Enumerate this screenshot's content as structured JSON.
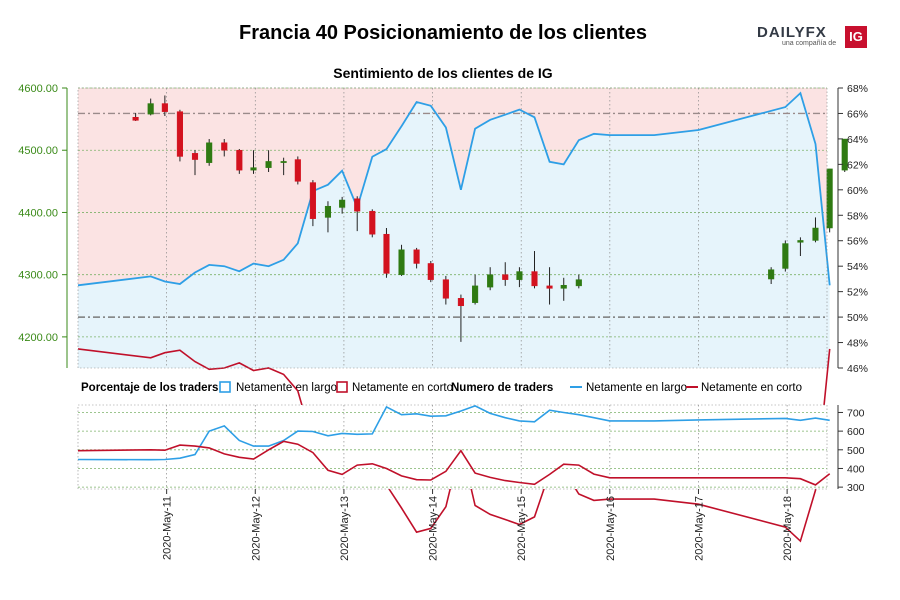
{
  "header": {
    "title": "Francia 40 Posicionamiento de los clientes",
    "brand": "DAILYFX",
    "brand_sub": "una compañía de",
    "brand_badge": "IG"
  },
  "colors": {
    "long": "#2e9fe6",
    "short": "#c0102a",
    "candle_up": "#2f7a12",
    "candle_down": "#d3121f",
    "price_axis": "#3a8a18",
    "long_fill": "#e6f4fb",
    "short_fill": "#fbe3e3"
  },
  "legend": {
    "pct_title": "Porcentaje de los traders",
    "pct_long": "Netamente en largo",
    "pct_short": "Netamente en corto",
    "num_title": "Numero de traders",
    "num_long": "Netamente en largo",
    "num_short": "Netamente en corto"
  },
  "chart_data": [
    {
      "type": "candlestick+line",
      "title": "Sentimiento de los clientes de IG",
      "x_axis": {
        "range_days": [
          0,
          8.45
        ],
        "tick_labels": [
          "2020-May-11",
          "2020-May-12",
          "2020-May-13",
          "2020-May-14",
          "2020-May-15",
          "2020-May-16",
          "2020-May-17",
          "2020-May-18"
        ],
        "tick_pos": [
          1,
          2,
          3,
          4,
          5,
          6,
          7,
          8
        ]
      },
      "price_axis": {
        "side": "left",
        "range": [
          4150,
          4600
        ],
        "ticks": [
          4200,
          4300,
          4400,
          4500,
          4600
        ],
        "tick_labels": [
          "4200.00",
          "4300.00",
          "4400.00",
          "4500.00",
          "4600.00"
        ]
      },
      "pct_axis": {
        "side": "right",
        "range": [
          46,
          68
        ],
        "ticks": [
          46,
          48,
          50,
          52,
          54,
          56,
          58,
          60,
          62,
          64,
          66,
          68
        ],
        "tick_labels": [
          "46%",
          "48%",
          "50%",
          "52%",
          "54%",
          "56%",
          "58%",
          "60%",
          "62%",
          "64%",
          "66%",
          "68%"
        ]
      },
      "reference_lines": {
        "upper_pct": 66,
        "lower_pct": 50
      },
      "grid": true,
      "candles": [
        {
          "t": 0.65,
          "o": 4553,
          "h": 4560,
          "l": 4547,
          "c": 4548
        },
        {
          "t": 0.82,
          "o": 4558,
          "h": 4583,
          "l": 4556,
          "c": 4575
        },
        {
          "t": 0.98,
          "o": 4575,
          "h": 4588,
          "l": 4555,
          "c": 4562
        },
        {
          "t": 1.15,
          "o": 4562,
          "h": 4565,
          "l": 4482,
          "c": 4490
        },
        {
          "t": 1.32,
          "o": 4495,
          "h": 4500,
          "l": 4460,
          "c": 4485
        },
        {
          "t": 1.48,
          "o": 4480,
          "h": 4518,
          "l": 4475,
          "c": 4512
        },
        {
          "t": 1.65,
          "o": 4512,
          "h": 4518,
          "l": 4490,
          "c": 4500
        },
        {
          "t": 1.82,
          "o": 4500,
          "h": 4502,
          "l": 4462,
          "c": 4468
        },
        {
          "t": 1.98,
          "o": 4468,
          "h": 4500,
          "l": 4462,
          "c": 4472
        },
        {
          "t": 2.15,
          "o": 4472,
          "h": 4500,
          "l": 4465,
          "c": 4482
        },
        {
          "t": 2.32,
          "o": 4482,
          "h": 4488,
          "l": 4460,
          "c": 4482
        },
        {
          "t": 2.48,
          "o": 4485,
          "h": 4490,
          "l": 4445,
          "c": 4450
        },
        {
          "t": 2.65,
          "o": 4448,
          "h": 4452,
          "l": 4378,
          "c": 4390
        },
        {
          "t": 2.82,
          "o": 4392,
          "h": 4418,
          "l": 4368,
          "c": 4410
        },
        {
          "t": 2.98,
          "o": 4408,
          "h": 4425,
          "l": 4398,
          "c": 4420
        },
        {
          "t": 3.15,
          "o": 4422,
          "h": 4426,
          "l": 4370,
          "c": 4402
        },
        {
          "t": 3.32,
          "o": 4402,
          "h": 4405,
          "l": 4360,
          "c": 4365
        },
        {
          "t": 3.48,
          "o": 4365,
          "h": 4375,
          "l": 4295,
          "c": 4302
        },
        {
          "t": 3.65,
          "o": 4300,
          "h": 4348,
          "l": 4298,
          "c": 4340
        },
        {
          "t": 3.82,
          "o": 4340,
          "h": 4343,
          "l": 4310,
          "c": 4318
        },
        {
          "t": 3.98,
          "o": 4318,
          "h": 4322,
          "l": 4288,
          "c": 4292
        },
        {
          "t": 4.15,
          "o": 4292,
          "h": 4298,
          "l": 4252,
          "c": 4262
        },
        {
          "t": 4.32,
          "o": 4262,
          "h": 4268,
          "l": 4192,
          "c": 4250
        },
        {
          "t": 4.48,
          "o": 4255,
          "h": 4300,
          "l": 4252,
          "c": 4282
        },
        {
          "t": 4.65,
          "o": 4280,
          "h": 4312,
          "l": 4275,
          "c": 4300
        },
        {
          "t": 4.82,
          "o": 4300,
          "h": 4320,
          "l": 4282,
          "c": 4292
        },
        {
          "t": 4.98,
          "o": 4292,
          "h": 4312,
          "l": 4280,
          "c": 4305
        },
        {
          "t": 5.15,
          "o": 4305,
          "h": 4338,
          "l": 4278,
          "c": 4282
        },
        {
          "t": 5.32,
          "o": 4282,
          "h": 4312,
          "l": 4252,
          "c": 4278
        },
        {
          "t": 5.48,
          "o": 4278,
          "h": 4295,
          "l": 4258,
          "c": 4283
        },
        {
          "t": 5.65,
          "o": 4282,
          "h": 4300,
          "l": 4278,
          "c": 4292
        },
        {
          "t": 7.82,
          "o": 4293,
          "h": 4312,
          "l": 4285,
          "c": 4308
        },
        {
          "t": 7.98,
          "o": 4310,
          "h": 4355,
          "l": 4305,
          "c": 4350
        },
        {
          "t": 8.15,
          "o": 4352,
          "h": 4360,
          "l": 4330,
          "c": 4355
        },
        {
          "t": 8.32,
          "o": 4355,
          "h": 4392,
          "l": 4352,
          "c": 4375
        },
        {
          "t": 8.48,
          "o": 4375,
          "h": 4470,
          "l": 4368,
          "c": 4470
        },
        {
          "t": 8.65,
          "o": 4468,
          "h": 4518,
          "l": 4465,
          "c": 4518
        }
      ],
      "long_pct": {
        "t": [
          0,
          0.82,
          0.98,
          1.15,
          1.32,
          1.48,
          1.65,
          1.82,
          1.98,
          2.15,
          2.32,
          2.48,
          2.65,
          2.82,
          2.98,
          3.15,
          3.32,
          3.48,
          3.65,
          3.82,
          3.98,
          4.15,
          4.32,
          4.48,
          4.65,
          4.82,
          4.98,
          5.15,
          5.32,
          5.48,
          5.65,
          5.82,
          6.0,
          6.5,
          7.0,
          7.98,
          8.15,
          8.32,
          8.48
        ],
        "v": [
          52.5,
          53.2,
          52.8,
          52.6,
          53.5,
          54.1,
          54.0,
          53.6,
          54.2,
          54.0,
          54.5,
          55.8,
          59.9,
          60.4,
          61.5,
          58.6,
          62.6,
          63.2,
          65.0,
          66.9,
          66.6,
          64.9,
          60.0,
          64.8,
          65.5,
          65.9,
          66.3,
          65.7,
          62.2,
          62.0,
          63.9,
          64.4,
          64.3,
          64.3,
          64.7,
          66.5,
          67.6,
          63.6,
          52.5
        ]
      },
      "short_pct_note": "complement of long_pct (100 - long)"
    },
    {
      "type": "line",
      "title": "Numero de traders",
      "y_axis": {
        "side": "right",
        "range": [
          290,
          740
        ],
        "ticks": [
          300,
          400,
          500,
          600,
          700
        ],
        "tick_labels": [
          "300",
          "400",
          "500",
          "600",
          "700"
        ]
      },
      "grid": true,
      "series": [
        {
          "name": "Netamente en largo",
          "t": [
            0,
            0.82,
            0.98,
            1.15,
            1.32,
            1.48,
            1.65,
            1.82,
            1.98,
            2.15,
            2.32,
            2.48,
            2.65,
            2.82,
            2.98,
            3.15,
            3.32,
            3.48,
            3.65,
            3.82,
            3.98,
            4.15,
            4.32,
            4.48,
            4.65,
            4.82,
            4.98,
            5.15,
            5.32,
            5.48,
            5.65,
            5.82,
            6.0,
            6.5,
            7.0,
            7.98,
            8.15,
            8.32,
            8.48
          ],
          "v": [
            448,
            447,
            448,
            455,
            475,
            600,
            628,
            550,
            520,
            520,
            550,
            600,
            598,
            575,
            588,
            583,
            585,
            730,
            688,
            693,
            680,
            682,
            708,
            735,
            695,
            672,
            655,
            650,
            712,
            700,
            688,
            672,
            655,
            655,
            660,
            668,
            658,
            670,
            658
          ]
        },
        {
          "name": "Netamente en corto",
          "t": [
            0,
            0.82,
            0.98,
            1.15,
            1.32,
            1.48,
            1.65,
            1.82,
            1.98,
            2.15,
            2.32,
            2.48,
            2.65,
            2.82,
            2.98,
            3.15,
            3.32,
            3.48,
            3.65,
            3.82,
            3.98,
            4.15,
            4.32,
            4.48,
            4.65,
            4.82,
            4.98,
            5.15,
            5.32,
            5.48,
            5.65,
            5.82,
            6.0,
            6.5,
            7.0,
            7.98,
            8.15,
            8.32,
            8.48
          ],
          "v": [
            495,
            500,
            498,
            525,
            520,
            510,
            478,
            460,
            450,
            500,
            545,
            530,
            485,
            390,
            368,
            418,
            425,
            400,
            360,
            340,
            338,
            385,
            495,
            375,
            352,
            335,
            325,
            315,
            368,
            423,
            418,
            370,
            350,
            350,
            350,
            350,
            345,
            312,
            372
          ]
        }
      ]
    }
  ]
}
